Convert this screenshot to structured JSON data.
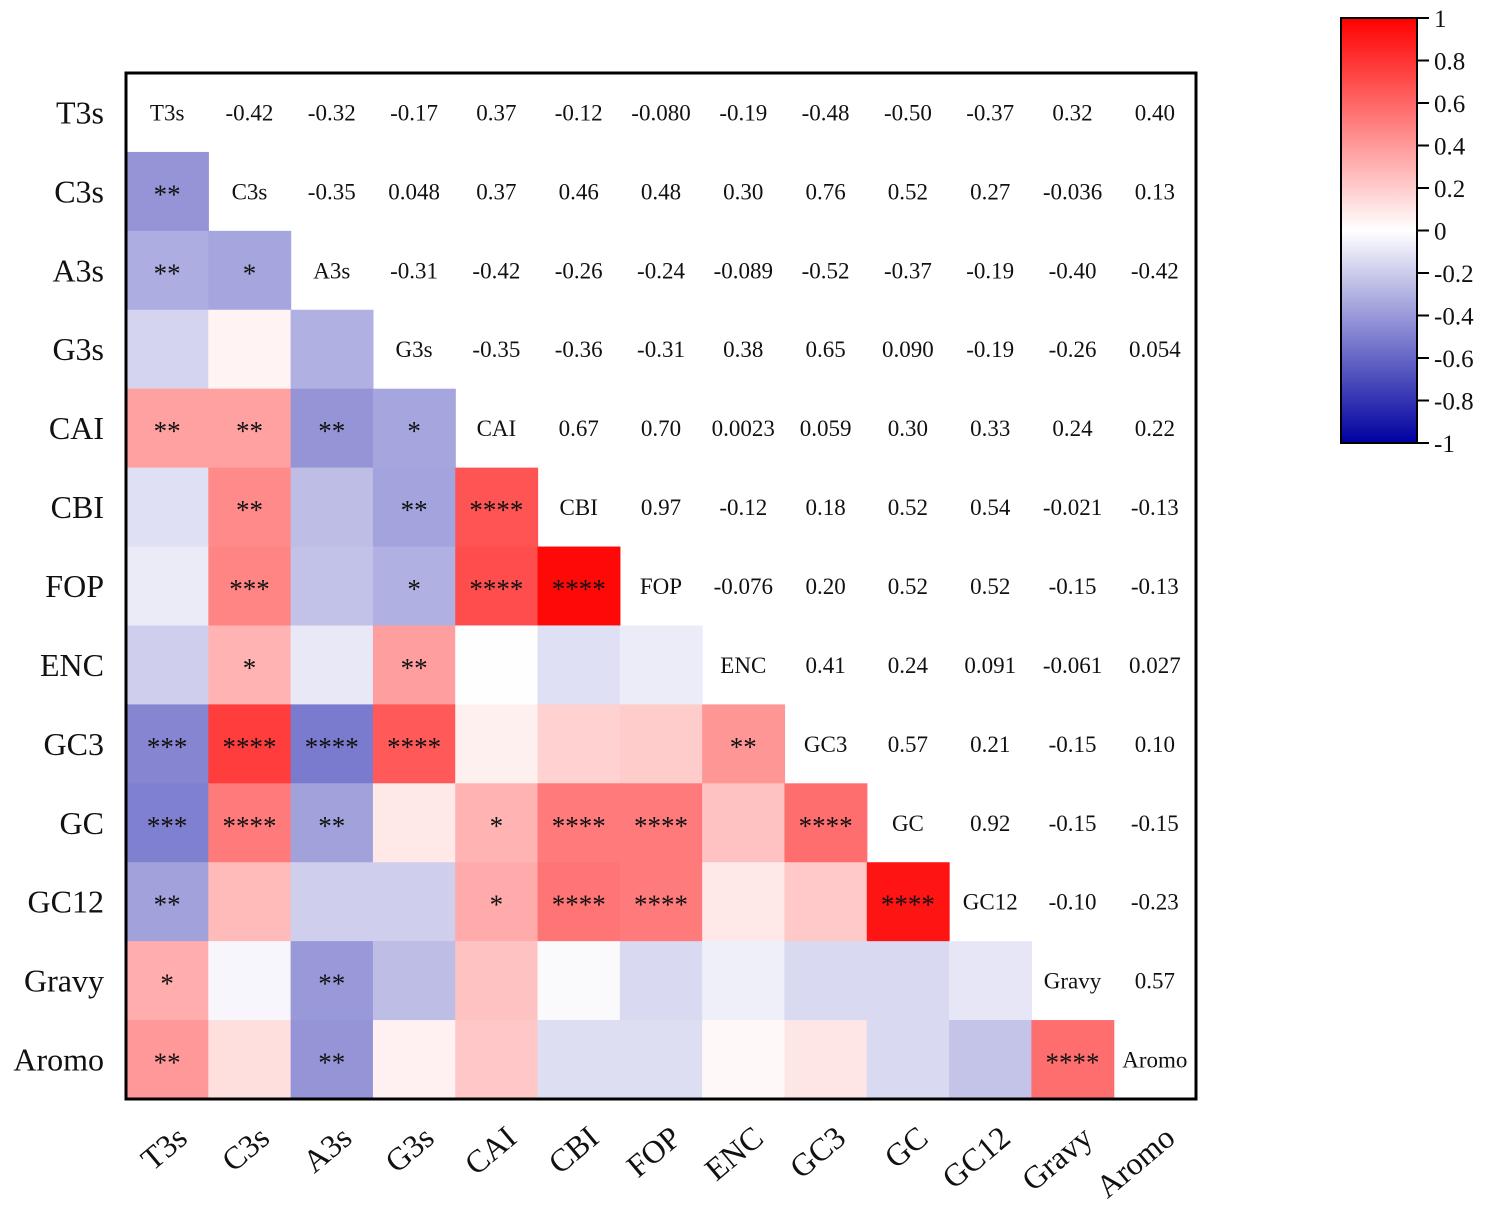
{
  "chart_data": {
    "type": "heatmap",
    "title": "",
    "variables": [
      "T3s",
      "C3s",
      "A3s",
      "G3s",
      "CAI",
      "CBI",
      "FOP",
      "ENC",
      "GC3",
      "GC",
      "GC12",
      "Gravy",
      "Aromo"
    ],
    "upper_triangle_labels": [
      [
        "T3s",
        "-0.42",
        "-0.32",
        "-0.17",
        "0.37",
        "-0.12",
        "-0.080",
        "-0.19",
        "-0.48",
        "-0.50",
        "-0.37",
        "0.32",
        "0.40"
      ],
      [
        "",
        "C3s",
        "-0.35",
        "0.048",
        "0.37",
        "0.46",
        "0.48",
        "0.30",
        "0.76",
        "0.52",
        "0.27",
        "-0.036",
        "0.13"
      ],
      [
        "",
        "",
        "A3s",
        "-0.31",
        "-0.42",
        "-0.26",
        "-0.24",
        "-0.089",
        "-0.52",
        "-0.37",
        "-0.19",
        "-0.40",
        "-0.42"
      ],
      [
        "",
        "",
        "",
        "G3s",
        "-0.35",
        "-0.36",
        "-0.31",
        "0.38",
        "0.65",
        "0.090",
        "-0.19",
        "-0.26",
        "0.054"
      ],
      [
        "",
        "",
        "",
        "",
        "CAI",
        "0.67",
        "0.70",
        "0.0023",
        "0.059",
        "0.30",
        "0.33",
        "0.24",
        "0.22"
      ],
      [
        "",
        "",
        "",
        "",
        "",
        "CBI",
        "0.97",
        "-0.12",
        "0.18",
        "0.52",
        "0.54",
        "-0.021",
        "-0.13"
      ],
      [
        "",
        "",
        "",
        "",
        "",
        "",
        "FOP",
        "-0.076",
        "0.20",
        "0.52",
        "0.52",
        "-0.15",
        "-0.13"
      ],
      [
        "",
        "",
        "",
        "",
        "",
        "",
        "",
        "ENC",
        "0.41",
        "0.24",
        "0.091",
        "-0.061",
        "0.027"
      ],
      [
        "",
        "",
        "",
        "",
        "",
        "",
        "",
        "",
        "GC3",
        "0.57",
        "0.21",
        "-0.15",
        "0.10"
      ],
      [
        "",
        "",
        "",
        "",
        "",
        "",
        "",
        "",
        "",
        "GC",
        "0.92",
        "-0.15",
        "-0.15"
      ],
      [
        "",
        "",
        "",
        "",
        "",
        "",
        "",
        "",
        "",
        "",
        "GC12",
        "-0.10",
        "-0.23"
      ],
      [
        "",
        "",
        "",
        "",
        "",
        "",
        "",
        "",
        "",
        "",
        "",
        "Gravy",
        "0.57"
      ],
      [
        "",
        "",
        "",
        "",
        "",
        "",
        "",
        "",
        "",
        "",
        "",
        "",
        "Aromo"
      ]
    ],
    "significance_lower": [
      [
        "",
        "",
        "",
        "",
        "",
        "",
        "",
        "",
        "",
        "",
        "",
        "",
        ""
      ],
      [
        "**",
        "",
        "",
        "",
        "",
        "",
        "",
        "",
        "",
        "",
        "",
        "",
        ""
      ],
      [
        "**",
        "*",
        "",
        "",
        "",
        "",
        "",
        "",
        "",
        "",
        "",
        "",
        ""
      ],
      [
        "",
        "",
        "",
        "",
        "",
        "",
        "",
        "",
        "",
        "",
        "",
        "",
        ""
      ],
      [
        "**",
        "**",
        "**",
        "*",
        "",
        "",
        "",
        "",
        "",
        "",
        "",
        "",
        ""
      ],
      [
        "",
        "**",
        "",
        "**",
        "****",
        "",
        "",
        "",
        "",
        "",
        "",
        "",
        ""
      ],
      [
        "",
        "***",
        "",
        "*",
        "****",
        "****",
        "",
        "",
        "",
        "",
        "",
        "",
        ""
      ],
      [
        "",
        "*",
        "",
        "**",
        "",
        "",
        "",
        "",
        "",
        "",
        "",
        "",
        ""
      ],
      [
        "***",
        "****",
        "****",
        "****",
        "",
        "",
        "",
        "**",
        "",
        "",
        "",
        "",
        ""
      ],
      [
        "***",
        "****",
        "**",
        "",
        "*",
        "****",
        "****",
        "",
        "****",
        "",
        "",
        "",
        ""
      ],
      [
        "**",
        "",
        "",
        "",
        "*",
        "****",
        "****",
        "",
        "",
        "****",
        "",
        "",
        ""
      ],
      [
        "*",
        "",
        "**",
        "",
        "",
        "",
        "",
        "",
        "",
        "",
        "",
        "",
        ""
      ],
      [
        "**",
        "",
        "**",
        "",
        "",
        "",
        "",
        "",
        "",
        "",
        "",
        "****",
        ""
      ]
    ],
    "colorbar": {
      "min": -1,
      "max": 1,
      "ticks": [
        "1",
        "0.8",
        "0.6",
        "0.4",
        "0.2",
        "0",
        "-0.2",
        "-0.4",
        "-0.6",
        "-0.8",
        "-1"
      ],
      "tick_values": [
        1,
        0.8,
        0.6,
        0.4,
        0.2,
        0,
        -0.2,
        -0.4,
        -0.6,
        -0.8,
        -1
      ],
      "colors": {
        "positive": "#ff0000",
        "zero": "#ffffff",
        "negative": "#0000a0"
      }
    }
  }
}
